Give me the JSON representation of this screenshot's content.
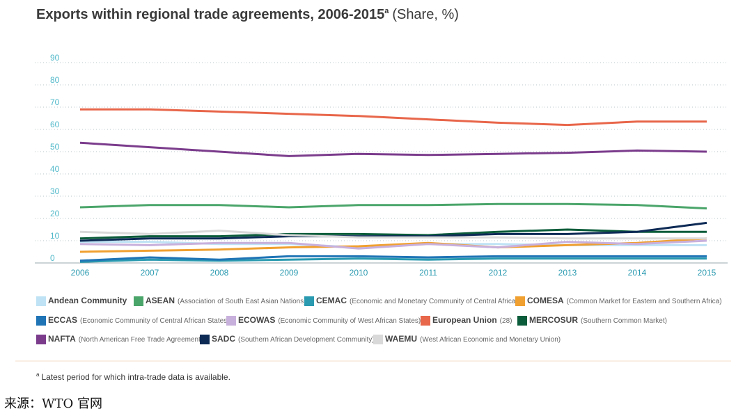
{
  "chart_data": {
    "type": "line",
    "title": "Exports within regional trade agreements, 2006-2015",
    "title_marker": "a",
    "title_unit": "(Share, %)",
    "x": [
      2006,
      2007,
      2008,
      2009,
      2010,
      2011,
      2012,
      2013,
      2014,
      2015
    ],
    "xlim": [
      2006,
      2015
    ],
    "ylim": [
      0,
      90
    ],
    "yticks": [
      0,
      10,
      20,
      30,
      40,
      50,
      60,
      70,
      80,
      90
    ],
    "grid": true,
    "series": [
      {
        "name": "Andean Community",
        "color": "#bfe3f5",
        "values": [
          9.5,
          9.5,
          8.5,
          8.5,
          7,
          8.5,
          8.5,
          8,
          8,
          8
        ]
      },
      {
        "name": "ASEAN",
        "description": "(Association of South East Asian Nations)",
        "color": "#4aa56a",
        "values": [
          25,
          26,
          26,
          25,
          26,
          26,
          26.5,
          26.5,
          26,
          24.5
        ]
      },
      {
        "name": "CEMAC",
        "description": "(Economic and Monetary Community of Central Africa)",
        "color": "#2a9ab0",
        "values": [
          0.5,
          1.5,
          1,
          1.5,
          2,
          1.5,
          2,
          2,
          2,
          2
        ]
      },
      {
        "name": "COMESA",
        "description": "(Common Market for Eastern and Southern Africa)",
        "color": "#f0a030",
        "values": [
          5,
          5.5,
          6,
          7,
          7.5,
          9,
          7,
          8,
          9,
          11
        ]
      },
      {
        "name": "ECCAS",
        "description": "(Economic Community of Central African States)",
        "color": "#1f74b5",
        "values": [
          1,
          2.5,
          1.5,
          3,
          3,
          2.5,
          3,
          3,
          3,
          3
        ]
      },
      {
        "name": "ECOWAS",
        "description": "(Economic Community of West African States)",
        "color": "#c8b0dc",
        "values": [
          8.5,
          8,
          9,
          9,
          6.5,
          8.5,
          7,
          9.5,
          8.5,
          10
        ]
      },
      {
        "name": "European Union",
        "description": "(28)",
        "color": "#e8664a",
        "values": [
          69,
          69,
          68,
          67,
          66,
          64.5,
          63,
          62,
          63.5,
          63.5
        ]
      },
      {
        "name": "MERCOSUR",
        "description": "(Southern Common Market)",
        "color": "#0b5c3a",
        "values": [
          11,
          12,
          12,
          13,
          13,
          12.5,
          14,
          15,
          14,
          14
        ]
      },
      {
        "name": "NAFTA",
        "description": "(North American Free Trade Agreement)",
        "color": "#7b3c8c",
        "values": [
          54,
          52,
          50,
          48,
          49,
          48.5,
          49,
          49.5,
          50.5,
          50
        ]
      },
      {
        "name": "SADC",
        "description": "(Southern African Development Community)",
        "color": "#0d2a55",
        "values": [
          10,
          11,
          11,
          12,
          12,
          12,
          13,
          13,
          14,
          18
        ]
      },
      {
        "name": "WAEMU",
        "description": "(West African Economic and Monetary Union)",
        "color": "#d9d9d9",
        "values": [
          14,
          13,
          14.5,
          12.5,
          11.5,
          11.5,
          11.5,
          11,
          11,
          11
        ]
      }
    ],
    "footnote_marker": "a",
    "footnote": "Latest period for which intra-trade data is available.",
    "source": "来源：WTO 官网"
  }
}
